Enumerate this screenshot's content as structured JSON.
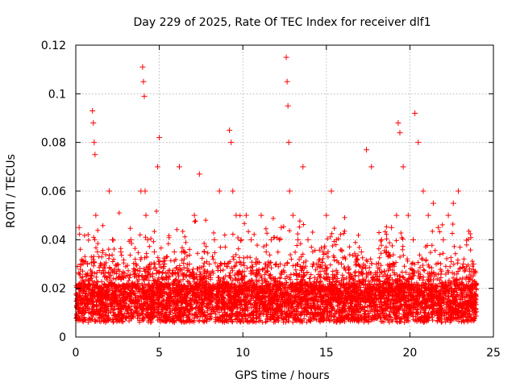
{
  "chart_data": {
    "type": "scatter",
    "title": "Day 229 of 2025, Rate Of TEC Index for receiver dlf1",
    "xlabel": "GPS time / hours",
    "ylabel": "ROTI / TECUs",
    "xlim": [
      0,
      25
    ],
    "ylim": [
      0,
      0.12
    ],
    "xticks": [
      0,
      5,
      10,
      15,
      20,
      25
    ],
    "xtick_labels": [
      "0",
      "5",
      "10",
      "15",
      "20",
      "25"
    ],
    "yticks": [
      0,
      0.02,
      0.04,
      0.06,
      0.08,
      0.1,
      0.12
    ],
    "ytick_labels": [
      "0",
      "0.02",
      "0.04",
      "0.06",
      "0.08",
      "0.1",
      "0.12"
    ],
    "grid": true,
    "marker": "plus",
    "color": "#ff0000",
    "series": [
      {
        "x": [
          0.1,
          0.2,
          0.3,
          0.5,
          0.7,
          0.9,
          1.0,
          1.05,
          1.1,
          1.15,
          1.2,
          1.3,
          1.5,
          1.7,
          2.0,
          2.2,
          2.4,
          2.7,
          3.0,
          3.3,
          3.6,
          3.9,
          4.0,
          4.05,
          4.1,
          4.15,
          4.2,
          4.3,
          4.5,
          4.7,
          4.9,
          5.0,
          5.3,
          5.6,
          5.9,
          6.2,
          6.5,
          6.8,
          7.1,
          7.4,
          7.7,
          8.0,
          8.3,
          8.6,
          8.9,
          9.2,
          9.3,
          9.4,
          9.6,
          9.9,
          10.2,
          10.5,
          10.8,
          11.1,
          11.4,
          11.7,
          12.0,
          12.3,
          12.6,
          12.65,
          12.7,
          12.75,
          12.8,
          13.0,
          13.3,
          13.6,
          13.9,
          14.2,
          14.5,
          14.8,
          15.0,
          15.3,
          15.6,
          15.9,
          16.2,
          16.5,
          16.8,
          17.1,
          17.4,
          17.7,
          18.0,
          18.3,
          18.6,
          18.9,
          19.2,
          19.3,
          19.4,
          19.6,
          19.9,
          20.2,
          20.3,
          20.5,
          20.8,
          21.1,
          21.4,
          21.7,
          22.0,
          22.3,
          22.6,
          22.9,
          23.2,
          23.5,
          23.8
        ],
        "y": [
          0.015,
          0.045,
          0.03,
          0.02,
          0.03,
          0.025,
          0.093,
          0.088,
          0.08,
          0.075,
          0.05,
          0.035,
          0.02,
          0.03,
          0.06,
          0.04,
          0.02,
          0.035,
          0.025,
          0.04,
          0.03,
          0.06,
          0.111,
          0.105,
          0.099,
          0.06,
          0.05,
          0.04,
          0.03,
          0.035,
          0.07,
          0.082,
          0.03,
          0.025,
          0.035,
          0.07,
          0.035,
          0.03,
          0.05,
          0.067,
          0.035,
          0.03,
          0.04,
          0.06,
          0.03,
          0.085,
          0.08,
          0.06,
          0.05,
          0.04,
          0.05,
          0.04,
          0.03,
          0.05,
          0.035,
          0.04,
          0.03,
          0.045,
          0.115,
          0.105,
          0.095,
          0.08,
          0.06,
          0.05,
          0.04,
          0.07,
          0.04,
          0.03,
          0.03,
          0.035,
          0.05,
          0.06,
          0.04,
          0.03,
          0.02,
          0.025,
          0.03,
          0.035,
          0.077,
          0.07,
          0.03,
          0.04,
          0.035,
          0.045,
          0.05,
          0.088,
          0.084,
          0.07,
          0.05,
          0.04,
          0.092,
          0.08,
          0.06,
          0.05,
          0.055,
          0.045,
          0.04,
          0.05,
          0.055,
          0.06,
          0.03,
          0.02,
          0.03
        ]
      }
    ]
  }
}
